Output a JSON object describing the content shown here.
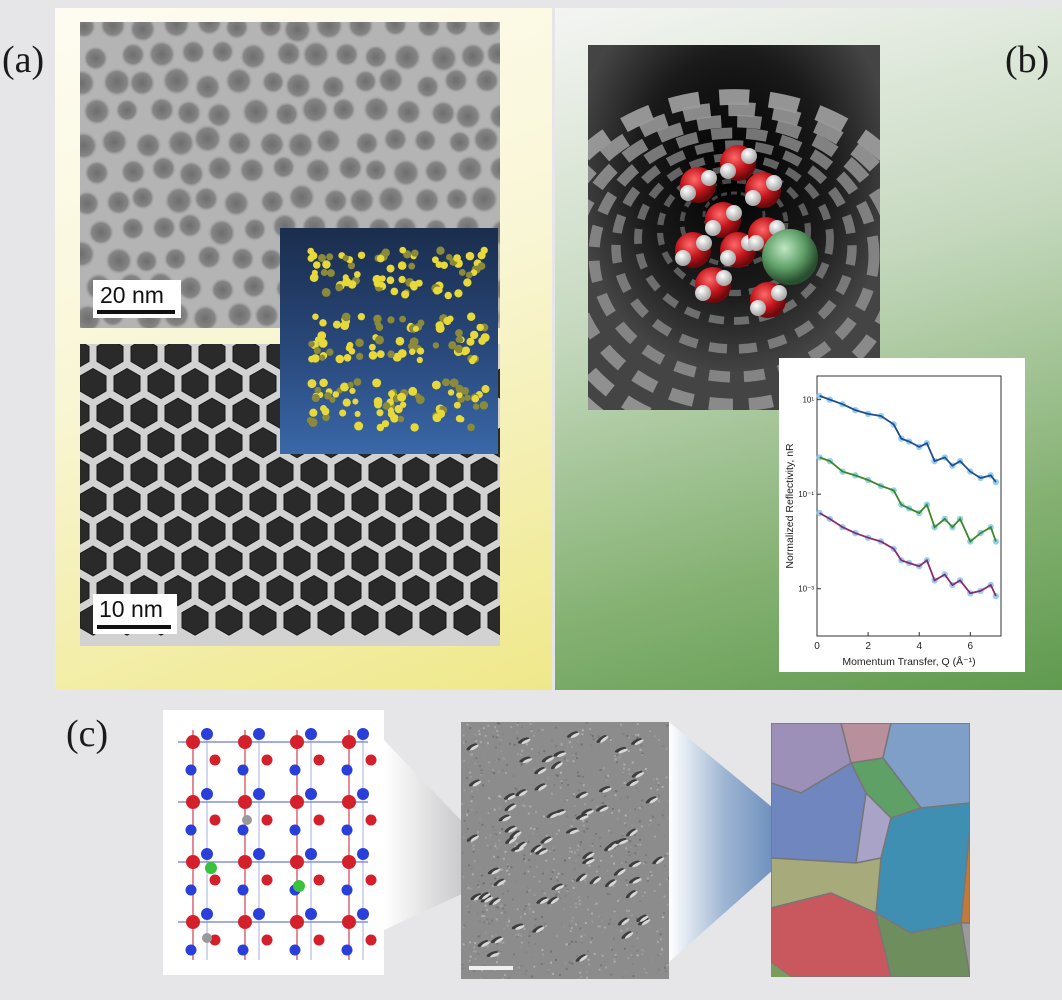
{
  "panels": {
    "a": {
      "label": "(a)",
      "scalebar_top": "20 nm",
      "scalebar_bottom": "10 nm"
    },
    "b": {
      "label": "(b)",
      "inset_plot": {
        "xlabel": "Momentum Transfer, Q (Å⁻¹)",
        "ylabel": "Normalized Reflectivity, nR",
        "xticks": [
          "0",
          "2",
          "4",
          "6"
        ],
        "yticks": [
          "10¹",
          "10⁻¹",
          "10⁻³"
        ]
      }
    },
    "c": {
      "label": "(c)"
    }
  },
  "chart_data": {
    "type": "line",
    "xlabel": "Momentum Transfer, Q (Å⁻¹)",
    "ylabel": "Normalized Reflectivity, nR",
    "xlim": [
      0,
      7.2
    ],
    "log_y": true,
    "series": [
      {
        "color": "#1f4e8c",
        "x": [
          0.1,
          0.5,
          1.0,
          1.5,
          2.0,
          2.5,
          3.0,
          3.3,
          3.6,
          4.0,
          4.3,
          4.6,
          5.0,
          5.3,
          5.6,
          6.0,
          6.4,
          6.8,
          7.0
        ],
        "y": [
          12,
          10,
          8,
          6,
          5,
          4.5,
          3,
          1.5,
          1.3,
          1.0,
          1.2,
          0.5,
          0.6,
          0.4,
          0.5,
          0.3,
          0.22,
          0.25,
          0.18
        ]
      },
      {
        "color": "#3a8a2a",
        "x": [
          0.1,
          0.5,
          1.0,
          1.5,
          2.0,
          2.5,
          3.0,
          3.3,
          3.6,
          4.0,
          4.3,
          4.6,
          5.0,
          5.3,
          5.6,
          6.0,
          6.4,
          6.8,
          7.0
        ],
        "y": [
          0.6,
          0.5,
          0.3,
          0.25,
          0.2,
          0.15,
          0.12,
          0.06,
          0.05,
          0.04,
          0.06,
          0.02,
          0.03,
          0.02,
          0.03,
          0.01,
          0.015,
          0.02,
          0.01
        ]
      },
      {
        "color": "#8a2a6e",
        "x": [
          0.1,
          0.5,
          1.0,
          1.5,
          2.0,
          2.5,
          3.0,
          3.3,
          3.6,
          4.0,
          4.3,
          4.6,
          5.0,
          5.3,
          5.6,
          6.0,
          6.4,
          6.8,
          7.0
        ],
        "y": [
          0.04,
          0.03,
          0.02,
          0.015,
          0.012,
          0.01,
          0.007,
          0.004,
          0.0035,
          0.003,
          0.004,
          0.0015,
          0.002,
          0.0012,
          0.0015,
          0.0008,
          0.0009,
          0.0012,
          0.0007
        ]
      }
    ]
  },
  "colors": {
    "panel_a_bg": "#f6f2b4",
    "panel_b_bg": "#7faa6e",
    "atom_red": "#d3202b",
    "atom_blue": "#2a3fd9",
    "atom_green": "#39c23b"
  }
}
